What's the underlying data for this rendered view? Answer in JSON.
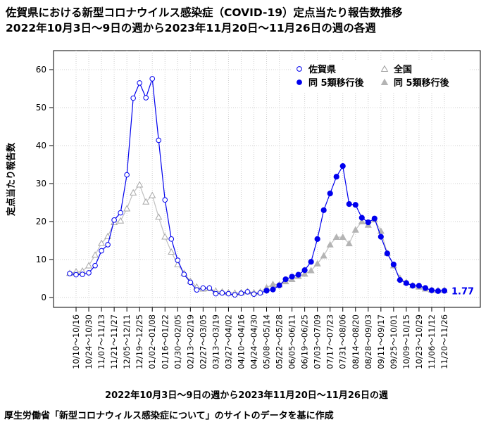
{
  "title_line1": "佐賀県における新型コロナウイルス感染症（COVID-19）定点当たり報告数推移",
  "title_line2": "2022年10月3日～9日の週から2023年11月20日～11月26日の週の各週",
  "source": "厚生労働省「新型コロナウィルス感染症について」のサイトのデータを基に作成",
  "chart_data": {
    "type": "line",
    "xlabel": "2022年10月3日～9日の週から2023年11月20日～11月26日の週",
    "ylabel": "定点当たり報告数",
    "ylim": [
      0,
      60
    ],
    "yticks": [
      0,
      10,
      20,
      30,
      40,
      50,
      60
    ],
    "grid": true,
    "legend_position": "top-right",
    "x_tick_labels": [
      "10/10～10/16",
      "10/24～10/30",
      "11/07～11/13",
      "11/21～11/27",
      "12/05～12/11",
      "12/19～12/25",
      "01/02～01/08",
      "01/16～01/22",
      "01/30～02/05",
      "02/13～02/19",
      "02/27～03/05",
      "03/13～03/19",
      "03/27～04/02",
      "04/10～04/16",
      "04/24～04/30",
      "05/08～05/14",
      "05/22～05/28",
      "06/05～06/11",
      "06/19～06/25",
      "07/03～07/09",
      "07/17～07/23",
      "07/31～08/06",
      "08/14～08/20",
      "08/28～09/03",
      "09/11～09/17",
      "09/25～10/01",
      "10/09～10/15",
      "10/23～10/29",
      "11/06～11/12",
      "11/20～11/26"
    ],
    "x_tick_start_index": 1,
    "x_tick_step": 2,
    "switch_index": 31,
    "final_label": "1.77",
    "series": [
      {
        "name": "佐賀県",
        "color": "#0000ee",
        "values": [
          6.3,
          6.0,
          6.1,
          6.5,
          8.4,
          12.3,
          13.9,
          20.4,
          22.3,
          32.3,
          52.5,
          56.5,
          52.6,
          57.6,
          41.4,
          25.7,
          15.4,
          9.8,
          6.1,
          4.0,
          2.0,
          2.5,
          2.5,
          1.0,
          1.2,
          1.0,
          0.7,
          1.1,
          1.5,
          0.9,
          1.2,
          1.8,
          2.1,
          3.2,
          4.8,
          5.5,
          6.0,
          7.2,
          9.4,
          15.4,
          23.0,
          27.4,
          31.8,
          34.6,
          24.6,
          24.4,
          21.0,
          19.8,
          20.8,
          16.0,
          11.6,
          8.7,
          4.6,
          3.8,
          3.1,
          3.1,
          2.5,
          1.9,
          1.7,
          1.77
        ]
      },
      {
        "name": "全国",
        "color": "#c0c0c0",
        "values": [
          6.4,
          6.8,
          7.0,
          8.4,
          11.2,
          14.3,
          16.1,
          19.8,
          20.2,
          23.4,
          27.6,
          29.7,
          25.2,
          26.9,
          21.2,
          16.0,
          12.0,
          8.7,
          6.4,
          4.3,
          2.8,
          2.3,
          2.4,
          1.7,
          1.5,
          1.3,
          1.2,
          1.3,
          1.6,
          1.3,
          1.5,
          2.6,
          3.5,
          3.4,
          4.2,
          4.8,
          5.6,
          6.2,
          7.1,
          8.9,
          11.0,
          13.9,
          15.9,
          15.9,
          14.2,
          17.8,
          20.0,
          19.1,
          20.5,
          17.5,
          11.7,
          8.4,
          5.1,
          4.0,
          3.2,
          2.8,
          2.3,
          2.0,
          1.9,
          2.0
        ]
      }
    ],
    "legend": [
      {
        "label": "佐賀県",
        "marker": "circle-open",
        "color": "#0000ee"
      },
      {
        "label": "全国",
        "marker": "triangle-open",
        "color": "#a0a0a0"
      },
      {
        "label": "同 5類移行後",
        "marker": "circle-filled",
        "color": "#0000ee"
      },
      {
        "label": "同 5類移行後",
        "marker": "triangle-filled",
        "color": "#b4b4b4"
      }
    ]
  }
}
